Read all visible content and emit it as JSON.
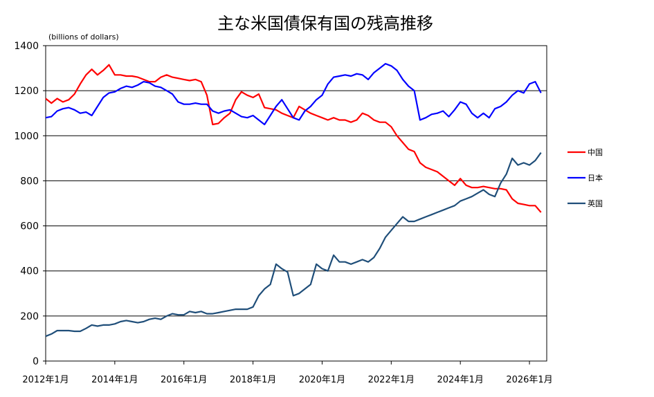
{
  "chart_data": {
    "type": "line",
    "title": "主な米国債保有国の残高推移",
    "unit_label": "(billions of dollars)",
    "xlabel": "",
    "ylabel": "",
    "xlim": [
      "2012-01",
      "2026-07"
    ],
    "ylim": [
      0,
      1400
    ],
    "grid": true,
    "legend_position": "right",
    "yticks": [
      "0",
      "200",
      "400",
      "600",
      "800",
      "1000",
      "1200",
      "1400"
    ],
    "xticks": [
      "2012年1月",
      "2014年1月",
      "2016年1月",
      "2018年1月",
      "2020年1月",
      "2022年1月",
      "2024年1月",
      "2026年1月"
    ],
    "series": [
      {
        "name": "中国",
        "color": "#ff0000",
        "points": [
          [
            "2012-01",
            1165
          ],
          [
            "2012-03",
            1145
          ],
          [
            "2012-05",
            1165
          ],
          [
            "2012-07",
            1150
          ],
          [
            "2012-09",
            1160
          ],
          [
            "2012-11",
            1185
          ],
          [
            "2013-01",
            1230
          ],
          [
            "2013-03",
            1270
          ],
          [
            "2013-05",
            1295
          ],
          [
            "2013-07",
            1270
          ],
          [
            "2013-09",
            1290
          ],
          [
            "2013-11",
            1315
          ],
          [
            "2014-01",
            1270
          ],
          [
            "2014-03",
            1270
          ],
          [
            "2014-05",
            1265
          ],
          [
            "2014-07",
            1265
          ],
          [
            "2014-09",
            1260
          ],
          [
            "2014-11",
            1250
          ],
          [
            "2015-01",
            1240
          ],
          [
            "2015-03",
            1240
          ],
          [
            "2015-05",
            1260
          ],
          [
            "2015-07",
            1270
          ],
          [
            "2015-09",
            1260
          ],
          [
            "2015-11",
            1255
          ],
          [
            "2016-01",
            1250
          ],
          [
            "2016-03",
            1245
          ],
          [
            "2016-05",
            1250
          ],
          [
            "2016-07",
            1240
          ],
          [
            "2016-09",
            1180
          ],
          [
            "2016-11",
            1050
          ],
          [
            "2017-01",
            1055
          ],
          [
            "2017-03",
            1080
          ],
          [
            "2017-05",
            1100
          ],
          [
            "2017-07",
            1160
          ],
          [
            "2017-09",
            1195
          ],
          [
            "2017-11",
            1180
          ],
          [
            "2018-01",
            1170
          ],
          [
            "2018-03",
            1185
          ],
          [
            "2018-05",
            1125
          ],
          [
            "2018-07",
            1120
          ],
          [
            "2018-09",
            1115
          ],
          [
            "2018-11",
            1100
          ],
          [
            "2019-01",
            1090
          ],
          [
            "2019-03",
            1080
          ],
          [
            "2019-05",
            1130
          ],
          [
            "2019-07",
            1115
          ],
          [
            "2019-09",
            1100
          ],
          [
            "2019-11",
            1090
          ],
          [
            "2020-01",
            1080
          ],
          [
            "2020-03",
            1070
          ],
          [
            "2020-05",
            1080
          ],
          [
            "2020-07",
            1070
          ],
          [
            "2020-09",
            1070
          ],
          [
            "2020-11",
            1060
          ],
          [
            "2021-01",
            1070
          ],
          [
            "2021-03",
            1100
          ],
          [
            "2021-05",
            1090
          ],
          [
            "2021-07",
            1070
          ],
          [
            "2021-09",
            1060
          ],
          [
            "2021-11",
            1060
          ],
          [
            "2022-01",
            1040
          ],
          [
            "2022-03",
            1000
          ],
          [
            "2022-05",
            970
          ],
          [
            "2022-07",
            940
          ],
          [
            "2022-09",
            930
          ],
          [
            "2022-11",
            880
          ],
          [
            "2023-01",
            860
          ],
          [
            "2023-03",
            850
          ],
          [
            "2023-05",
            840
          ],
          [
            "2023-07",
            820
          ],
          [
            "2023-09",
            800
          ],
          [
            "2023-11",
            780
          ],
          [
            "2024-01",
            810
          ],
          [
            "2024-03",
            780
          ],
          [
            "2024-05",
            770
          ],
          [
            "2024-07",
            770
          ],
          [
            "2024-09",
            775
          ],
          [
            "2024-11",
            770
          ],
          [
            "2025-01",
            765
          ],
          [
            "2025-03",
            765
          ],
          [
            "2025-05",
            760
          ],
          [
            "2025-07",
            720
          ],
          [
            "2025-09",
            700
          ],
          [
            "2025-11",
            695
          ],
          [
            "2026-01",
            690
          ],
          [
            "2026-03",
            690
          ],
          [
            "2026-05",
            660
          ]
        ]
      },
      {
        "name": "日本",
        "color": "#0000ff",
        "points": [
          [
            "2012-01",
            1080
          ],
          [
            "2012-03",
            1085
          ],
          [
            "2012-05",
            1110
          ],
          [
            "2012-07",
            1120
          ],
          [
            "2012-09",
            1125
          ],
          [
            "2012-11",
            1115
          ],
          [
            "2013-01",
            1100
          ],
          [
            "2013-03",
            1105
          ],
          [
            "2013-05",
            1090
          ],
          [
            "2013-07",
            1130
          ],
          [
            "2013-09",
            1170
          ],
          [
            "2013-11",
            1190
          ],
          [
            "2014-01",
            1195
          ],
          [
            "2014-03",
            1210
          ],
          [
            "2014-05",
            1220
          ],
          [
            "2014-07",
            1215
          ],
          [
            "2014-09",
            1225
          ],
          [
            "2014-11",
            1240
          ],
          [
            "2015-01",
            1235
          ],
          [
            "2015-03",
            1220
          ],
          [
            "2015-05",
            1215
          ],
          [
            "2015-07",
            1200
          ],
          [
            "2015-09",
            1185
          ],
          [
            "2015-11",
            1150
          ],
          [
            "2016-01",
            1140
          ],
          [
            "2016-03",
            1140
          ],
          [
            "2016-05",
            1145
          ],
          [
            "2016-07",
            1140
          ],
          [
            "2016-09",
            1140
          ],
          [
            "2016-11",
            1110
          ],
          [
            "2017-01",
            1100
          ],
          [
            "2017-03",
            1110
          ],
          [
            "2017-05",
            1115
          ],
          [
            "2017-07",
            1100
          ],
          [
            "2017-09",
            1085
          ],
          [
            "2017-11",
            1080
          ],
          [
            "2018-01",
            1090
          ],
          [
            "2018-03",
            1070
          ],
          [
            "2018-05",
            1050
          ],
          [
            "2018-07",
            1090
          ],
          [
            "2018-09",
            1130
          ],
          [
            "2018-11",
            1160
          ],
          [
            "2019-01",
            1120
          ],
          [
            "2019-03",
            1080
          ],
          [
            "2019-05",
            1070
          ],
          [
            "2019-07",
            1110
          ],
          [
            "2019-09",
            1130
          ],
          [
            "2019-11",
            1160
          ],
          [
            "2020-01",
            1180
          ],
          [
            "2020-03",
            1230
          ],
          [
            "2020-05",
            1260
          ],
          [
            "2020-07",
            1265
          ],
          [
            "2020-09",
            1270
          ],
          [
            "2020-11",
            1265
          ],
          [
            "2021-01",
            1275
          ],
          [
            "2021-03",
            1270
          ],
          [
            "2021-05",
            1250
          ],
          [
            "2021-07",
            1280
          ],
          [
            "2021-09",
            1300
          ],
          [
            "2021-11",
            1320
          ],
          [
            "2022-01",
            1310
          ],
          [
            "2022-03",
            1290
          ],
          [
            "2022-05",
            1250
          ],
          [
            "2022-07",
            1220
          ],
          [
            "2022-09",
            1200
          ],
          [
            "2022-11",
            1070
          ],
          [
            "2023-01",
            1080
          ],
          [
            "2023-03",
            1095
          ],
          [
            "2023-05",
            1100
          ],
          [
            "2023-07",
            1110
          ],
          [
            "2023-09",
            1085
          ],
          [
            "2023-11",
            1115
          ],
          [
            "2024-01",
            1150
          ],
          [
            "2024-03",
            1140
          ],
          [
            "2024-05",
            1100
          ],
          [
            "2024-07",
            1080
          ],
          [
            "2024-09",
            1100
          ],
          [
            "2024-11",
            1080
          ],
          [
            "2025-01",
            1120
          ],
          [
            "2025-03",
            1130
          ],
          [
            "2025-05",
            1150
          ],
          [
            "2025-07",
            1180
          ],
          [
            "2025-09",
            1200
          ],
          [
            "2025-11",
            1190
          ],
          [
            "2026-01",
            1230
          ],
          [
            "2026-03",
            1240
          ],
          [
            "2026-05",
            1190
          ]
        ]
      },
      {
        "name": "英国",
        "color": "#1f4e79",
        "points": [
          [
            "2012-01",
            110
          ],
          [
            "2012-03",
            120
          ],
          [
            "2012-05",
            135
          ],
          [
            "2012-07",
            135
          ],
          [
            "2012-09",
            135
          ],
          [
            "2012-11",
            132
          ],
          [
            "2013-01",
            132
          ],
          [
            "2013-03",
            145
          ],
          [
            "2013-05",
            160
          ],
          [
            "2013-07",
            155
          ],
          [
            "2013-09",
            160
          ],
          [
            "2013-11",
            160
          ],
          [
            "2014-01",
            165
          ],
          [
            "2014-03",
            175
          ],
          [
            "2014-05",
            180
          ],
          [
            "2014-07",
            175
          ],
          [
            "2014-09",
            170
          ],
          [
            "2014-11",
            175
          ],
          [
            "2015-01",
            185
          ],
          [
            "2015-03",
            190
          ],
          [
            "2015-05",
            185
          ],
          [
            "2015-07",
            200
          ],
          [
            "2015-09",
            210
          ],
          [
            "2015-11",
            205
          ],
          [
            "2016-01",
            205
          ],
          [
            "2016-03",
            220
          ],
          [
            "2016-05",
            215
          ],
          [
            "2016-07",
            220
          ],
          [
            "2016-09",
            210
          ],
          [
            "2016-11",
            210
          ],
          [
            "2017-01",
            215
          ],
          [
            "2017-03",
            220
          ],
          [
            "2017-05",
            225
          ],
          [
            "2017-07",
            230
          ],
          [
            "2017-09",
            230
          ],
          [
            "2017-11",
            230
          ],
          [
            "2018-01",
            240
          ],
          [
            "2018-03",
            290
          ],
          [
            "2018-05",
            320
          ],
          [
            "2018-07",
            340
          ],
          [
            "2018-09",
            430
          ],
          [
            "2018-11",
            410
          ],
          [
            "2019-01",
            395
          ],
          [
            "2019-03",
            290
          ],
          [
            "2019-05",
            300
          ],
          [
            "2019-07",
            320
          ],
          [
            "2019-09",
            340
          ],
          [
            "2019-11",
            430
          ],
          [
            "2020-01",
            410
          ],
          [
            "2020-03",
            400
          ],
          [
            "2020-05",
            470
          ],
          [
            "2020-07",
            440
          ],
          [
            "2020-09",
            440
          ],
          [
            "2020-11",
            430
          ],
          [
            "2021-01",
            440
          ],
          [
            "2021-03",
            450
          ],
          [
            "2021-05",
            440
          ],
          [
            "2021-07",
            460
          ],
          [
            "2021-09",
            500
          ],
          [
            "2021-11",
            550
          ],
          [
            "2022-01",
            580
          ],
          [
            "2022-03",
            610
          ],
          [
            "2022-05",
            640
          ],
          [
            "2022-07",
            620
          ],
          [
            "2022-09",
            620
          ],
          [
            "2022-11",
            630
          ],
          [
            "2023-01",
            640
          ],
          [
            "2023-03",
            650
          ],
          [
            "2023-05",
            660
          ],
          [
            "2023-07",
            670
          ],
          [
            "2023-09",
            680
          ],
          [
            "2023-11",
            690
          ],
          [
            "2024-01",
            710
          ],
          [
            "2024-03",
            720
          ],
          [
            "2024-05",
            730
          ],
          [
            "2024-07",
            745
          ],
          [
            "2024-09",
            760
          ],
          [
            "2024-11",
            740
          ],
          [
            "2025-01",
            730
          ],
          [
            "2025-03",
            790
          ],
          [
            "2025-05",
            830
          ],
          [
            "2025-07",
            900
          ],
          [
            "2025-09",
            870
          ],
          [
            "2025-11",
            880
          ],
          [
            "2026-01",
            870
          ],
          [
            "2026-03",
            890
          ],
          [
            "2026-05",
            925
          ]
        ]
      }
    ]
  }
}
